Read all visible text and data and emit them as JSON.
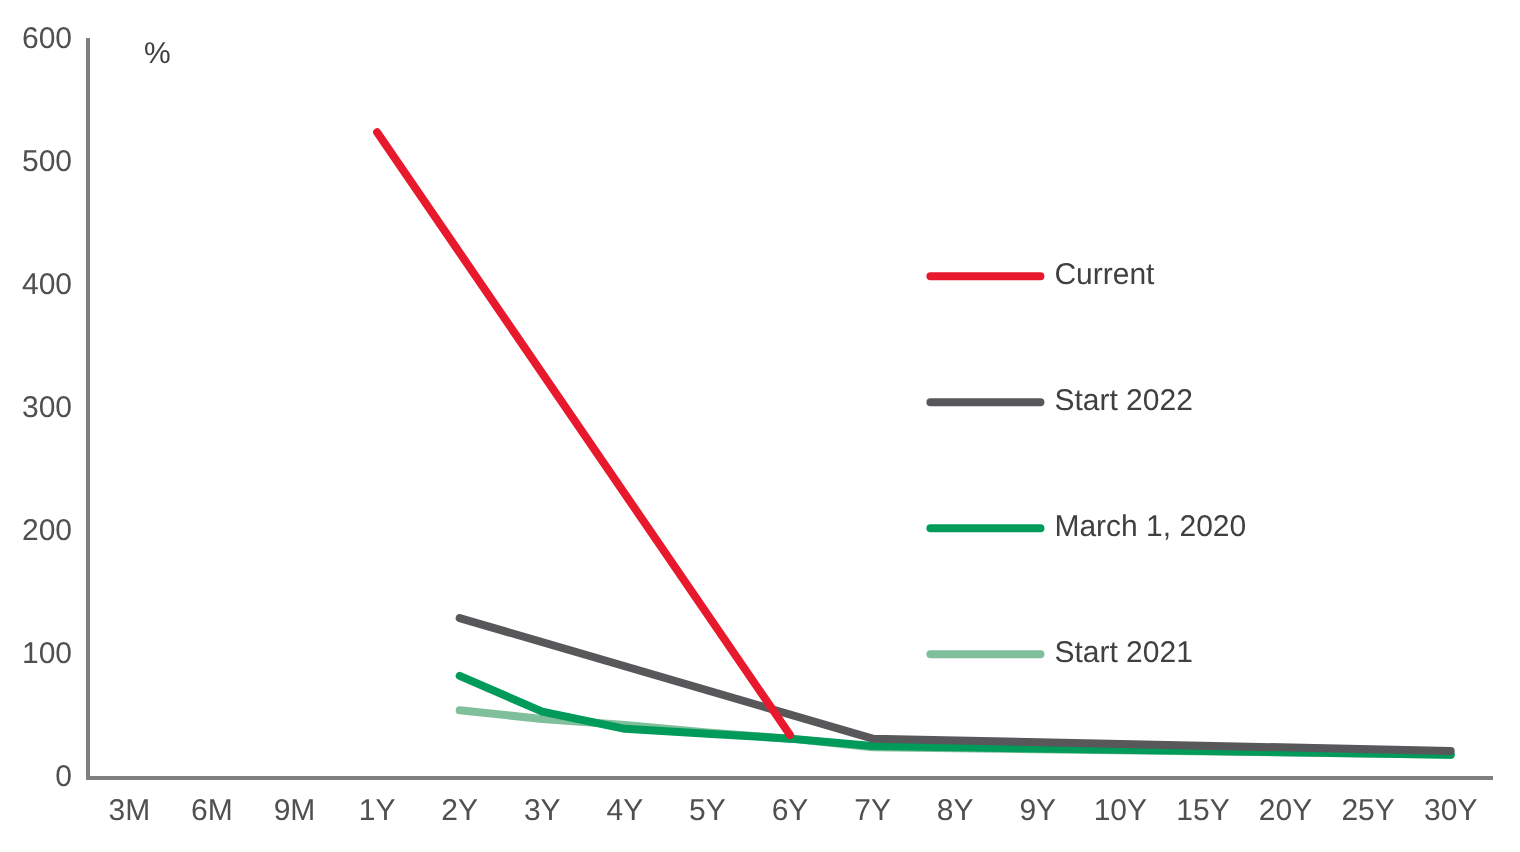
{
  "chart_data": {
    "type": "line",
    "ylabel": "%",
    "categories": [
      "3M",
      "6M",
      "9M",
      "1Y",
      "2Y",
      "3Y",
      "4Y",
      "5Y",
      "6Y",
      "7Y",
      "8Y",
      "9Y",
      "10Y",
      "15Y",
      "20Y",
      "25Y",
      "30Y"
    ],
    "series": [
      {
        "name": "Current",
        "color": "#e8192c",
        "values": [
          null,
          null,
          null,
          525,
          null,
          null,
          null,
          null,
          35,
          null,
          null,
          null,
          null,
          null,
          null,
          null,
          null
        ]
      },
      {
        "name": "Start 2022",
        "color": "#58585a",
        "values": [
          null,
          null,
          null,
          null,
          130,
          null,
          null,
          null,
          null,
          32,
          null,
          null,
          null,
          null,
          null,
          null,
          22
        ]
      },
      {
        "name": "March 1, 2020",
        "color": "#009a5a",
        "values": [
          null,
          null,
          null,
          null,
          83,
          54,
          40,
          36,
          32,
          26,
          null,
          null,
          null,
          null,
          null,
          null,
          19
        ]
      },
      {
        "name": "Start 2021",
        "color": "#80bf9c",
        "values": [
          null,
          null,
          null,
          null,
          55,
          48,
          43,
          37,
          32,
          25,
          null,
          null,
          null,
          null,
          null,
          null,
          19
        ]
      }
    ],
    "ylim": [
      0,
      600
    ],
    "yticks": [
      0,
      100,
      200,
      300,
      400,
      500,
      600
    ],
    "grid": false,
    "legend": "right",
    "marker": "none",
    "line_style": "solid"
  }
}
